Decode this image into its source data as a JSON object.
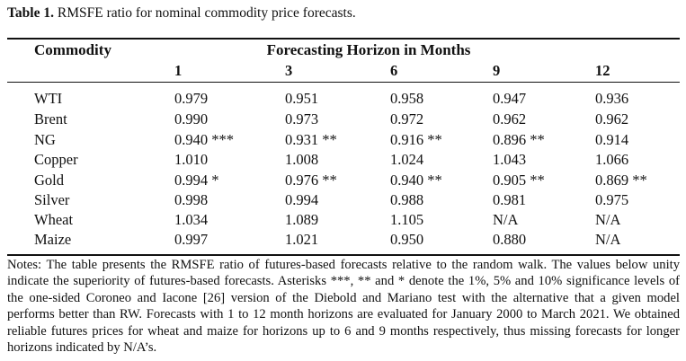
{
  "caption": {
    "label": "Table 1.",
    "text": "RMSFE ratio for nominal commodity price forecasts."
  },
  "header": {
    "commodity": "Commodity",
    "horizon_title": "Forecasting Horizon in Months",
    "horizons": [
      "1",
      "3",
      "6",
      "9",
      "12"
    ]
  },
  "rows": [
    {
      "name": "WTI",
      "values": [
        "0.979",
        "0.951",
        "0.958",
        "0.947",
        "0.936"
      ]
    },
    {
      "name": "Brent",
      "values": [
        "0.990",
        "0.973",
        "0.972",
        "0.962",
        "0.962"
      ]
    },
    {
      "name": "NG",
      "values": [
        "0.940 ***",
        "0.931 **",
        "0.916 **",
        "0.896 **",
        "0.914"
      ]
    },
    {
      "name": "Copper",
      "values": [
        "1.010",
        "1.008",
        "1.024",
        "1.043",
        "1.066"
      ]
    },
    {
      "name": "Gold",
      "values": [
        "0.994 *",
        "0.976 **",
        "0.940 **",
        "0.905 **",
        "0.869 **"
      ]
    },
    {
      "name": "Silver",
      "values": [
        "0.998",
        "0.994",
        "0.988",
        "0.981",
        "0.975"
      ]
    },
    {
      "name": "Wheat",
      "values": [
        "1.034",
        "1.089",
        "1.105",
        "N/A",
        "N/A"
      ]
    },
    {
      "name": "Maize",
      "values": [
        "0.997",
        "1.021",
        "0.950",
        "0.880",
        "N/A"
      ]
    }
  ],
  "notes": "Notes: The table presents the RMSFE ratio of futures-based forecasts relative to the random walk. The values below unity indicate the superiority of futures-based forecasts. Asterisks ***, ** and * denote the 1%, 5% and 10% significance levels of the one-sided Coroneo and Iacone [26] version of the Diebold and Mariano test with the alternative that a given model performs better than RW. Forecasts with 1 to 12 month horizons are evaluated for January 2000 to March 2021. We obtained reliable futures prices for wheat and maize for horizons up to 6 and 9 months respectively, thus missing forecasts for longer horizons indicated by N/A’s."
}
